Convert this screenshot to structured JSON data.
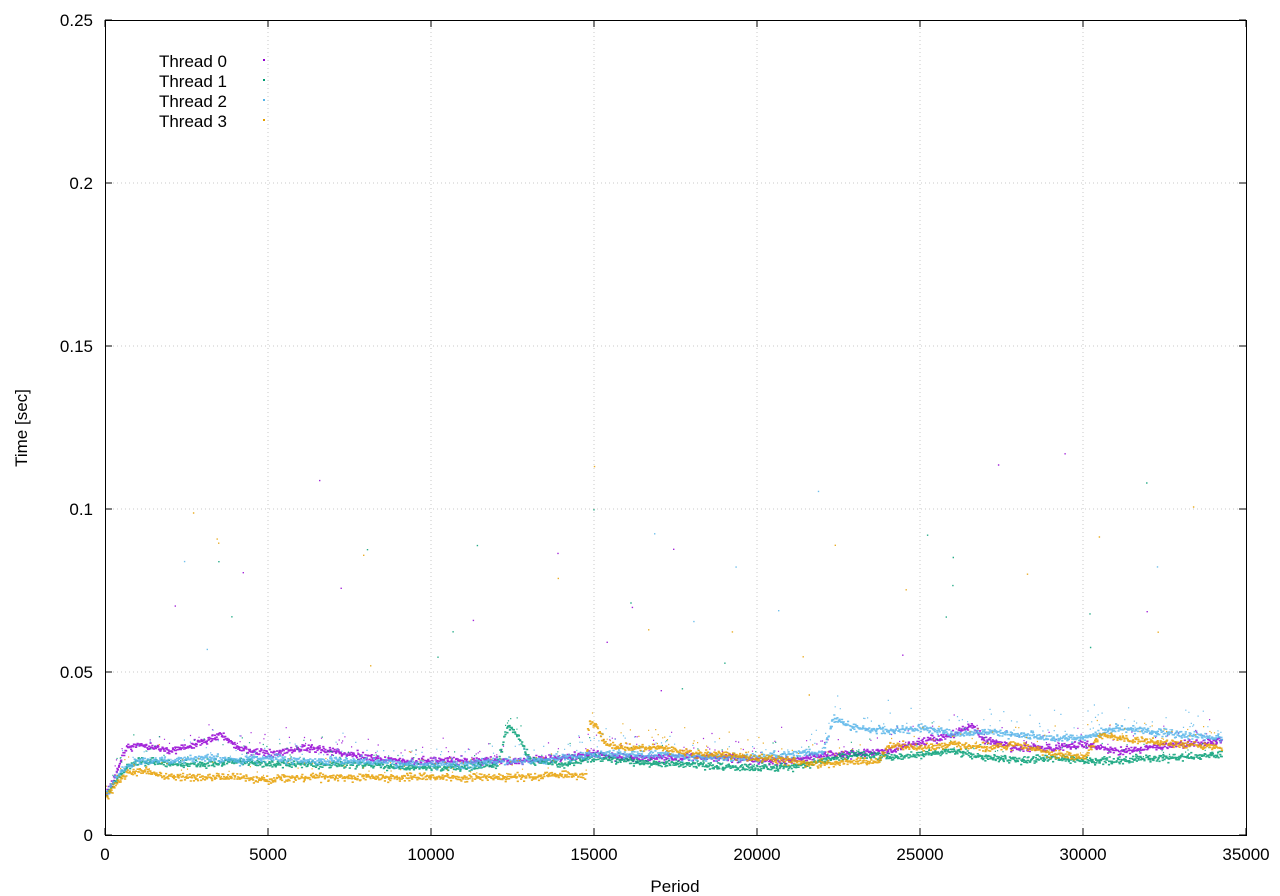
{
  "chart_data": {
    "type": "scatter",
    "title": "",
    "xlabel": "Period",
    "ylabel": "Time [sec]",
    "xlim": [
      0,
      35000
    ],
    "ylim": [
      0,
      0.25
    ],
    "x_ticks": [
      0,
      5000,
      10000,
      15000,
      20000,
      25000,
      30000,
      35000
    ],
    "y_ticks": [
      0,
      0.05,
      0.1,
      0.15,
      0.2,
      0.25
    ],
    "x_tick_labels": [
      "0",
      "5000",
      "10000",
      "15000",
      "20000",
      "25000",
      "30000",
      "35000"
    ],
    "y_tick_labels": [
      "0",
      "0.05",
      "0.1",
      "0.15",
      "0.2",
      "0.25"
    ],
    "grid": true,
    "legend_position": "top-left",
    "x_max_observed": 34200,
    "series": [
      {
        "name": "Thread 0",
        "color": "#9400d3",
        "x": [
          0,
          300,
          600,
          1000,
          2000,
          3000,
          3500,
          4000,
          5000,
          6000,
          7000,
          8000,
          9000,
          10000,
          11000,
          12000,
          13000,
          14000,
          15000,
          16000,
          17000,
          18000,
          19000,
          20000,
          21000,
          22000,
          23000,
          24000,
          25000,
          26000,
          26500,
          27000,
          28000,
          29000,
          30000,
          31000,
          32000,
          33000,
          34200
        ],
        "y": [
          0.013,
          0.019,
          0.027,
          0.028,
          0.026,
          0.029,
          0.031,
          0.027,
          0.025,
          0.027,
          0.026,
          0.024,
          0.023,
          0.023,
          0.023,
          0.023,
          0.023,
          0.024,
          0.025,
          0.024,
          0.024,
          0.024,
          0.024,
          0.023,
          0.023,
          0.025,
          0.025,
          0.026,
          0.029,
          0.031,
          0.034,
          0.029,
          0.027,
          0.027,
          0.028,
          0.026,
          0.027,
          0.028,
          0.029
        ]
      },
      {
        "name": "Thread 1",
        "color": "#009e73",
        "x": [
          0,
          300,
          600,
          1000,
          2000,
          3000,
          4000,
          5000,
          6000,
          7000,
          8000,
          9000,
          10000,
          11000,
          12000,
          12300,
          12600,
          13000,
          14000,
          15000,
          16000,
          17000,
          18000,
          19000,
          20000,
          21000,
          22000,
          23000,
          24000,
          25000,
          26000,
          27000,
          28000,
          29000,
          30000,
          31000,
          32000,
          33000,
          34200
        ],
        "y": [
          0.013,
          0.017,
          0.021,
          0.023,
          0.022,
          0.022,
          0.023,
          0.022,
          0.022,
          0.022,
          0.022,
          0.021,
          0.021,
          0.021,
          0.022,
          0.034,
          0.031,
          0.023,
          0.022,
          0.024,
          0.023,
          0.022,
          0.022,
          0.021,
          0.021,
          0.021,
          0.023,
          0.025,
          0.024,
          0.025,
          0.026,
          0.024,
          0.023,
          0.024,
          0.023,
          0.023,
          0.024,
          0.024,
          0.025
        ]
      },
      {
        "name": "Thread 2",
        "color": "#56b4e9",
        "x": [
          0,
          300,
          600,
          1000,
          2000,
          3000,
          4000,
          5000,
          6000,
          7000,
          8000,
          9000,
          10000,
          11000,
          12000,
          13000,
          14000,
          15000,
          16000,
          17000,
          18000,
          19000,
          20000,
          21000,
          22000,
          22300,
          23000,
          24000,
          25000,
          26000,
          27000,
          28000,
          29000,
          30000,
          31000,
          32000,
          33000,
          34200
        ],
        "y": [
          0.013,
          0.018,
          0.021,
          0.023,
          0.023,
          0.024,
          0.023,
          0.024,
          0.023,
          0.023,
          0.023,
          0.022,
          0.022,
          0.022,
          0.023,
          0.023,
          0.024,
          0.025,
          0.025,
          0.025,
          0.024,
          0.024,
          0.024,
          0.025,
          0.026,
          0.036,
          0.033,
          0.032,
          0.033,
          0.031,
          0.032,
          0.031,
          0.03,
          0.03,
          0.033,
          0.032,
          0.031,
          0.03
        ]
      },
      {
        "name": "Thread 3",
        "color": "#e69f00",
        "x": [
          0,
          300,
          600,
          1000,
          2000,
          3000,
          4000,
          5000,
          6000,
          7000,
          8000,
          9000,
          10000,
          11000,
          12000,
          13000,
          14000,
          14700,
          14800,
          15000,
          15300,
          16000,
          17000,
          18000,
          19000,
          20000,
          21000,
          22000,
          23000,
          23700,
          24000,
          25000,
          26000,
          27000,
          28000,
          29000,
          30000,
          30500,
          31000,
          32000,
          33000,
          34200
        ],
        "y": [
          0.012,
          0.016,
          0.019,
          0.02,
          0.018,
          0.018,
          0.018,
          0.017,
          0.018,
          0.018,
          0.018,
          0.018,
          0.018,
          0.018,
          0.018,
          0.018,
          0.019,
          0.018,
          0.035,
          0.034,
          0.028,
          0.027,
          0.027,
          0.025,
          0.025,
          0.024,
          0.023,
          0.022,
          0.023,
          0.023,
          0.028,
          0.027,
          0.028,
          0.027,
          0.028,
          0.025,
          0.024,
          0.031,
          0.03,
          0.029,
          0.028,
          0.027
        ]
      }
    ]
  }
}
